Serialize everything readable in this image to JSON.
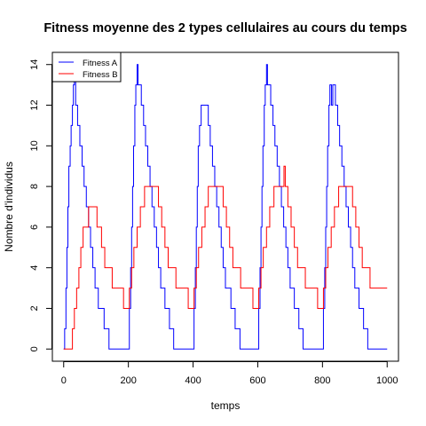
{
  "chart_data": {
    "type": "line",
    "title": "Fitness moyenne des 2 types cellulaires au cours du temps",
    "xlabel": "temps",
    "ylabel": "Nombre d'individus",
    "xlim": [
      -35,
      1035
    ],
    "ylim": [
      -0.6,
      14.6
    ],
    "xticks": [
      0,
      200,
      400,
      600,
      800,
      1000
    ],
    "yticks": [
      0,
      2,
      4,
      6,
      8,
      10,
      12,
      14
    ],
    "xtick_labels": [
      "0",
      "200",
      "400",
      "600",
      "800",
      "1000"
    ],
    "ytick_labels": [
      "0",
      "2",
      "4",
      "6",
      "8",
      "10",
      "12",
      "14"
    ],
    "grid": false,
    "legend_position": "top-left",
    "series": [
      {
        "name": "Fitness A",
        "color": "#0000ff",
        "step": true,
        "points": [
          [
            0,
            0
          ],
          [
            3,
            1
          ],
          [
            7,
            3
          ],
          [
            10,
            5
          ],
          [
            13,
            7
          ],
          [
            16,
            9
          ],
          [
            20,
            10
          ],
          [
            23,
            11
          ],
          [
            27,
            12
          ],
          [
            30,
            13
          ],
          [
            33,
            14
          ],
          [
            37,
            12
          ],
          [
            43,
            11
          ],
          [
            50,
            10
          ],
          [
            57,
            9
          ],
          [
            63,
            8
          ],
          [
            70,
            7
          ],
          [
            77,
            6
          ],
          [
            83,
            5
          ],
          [
            90,
            4
          ],
          [
            97,
            3
          ],
          [
            107,
            2
          ],
          [
            117,
            2
          ],
          [
            125,
            1
          ],
          [
            135,
            1
          ],
          [
            140,
            0
          ],
          [
            200,
            0
          ],
          [
            203,
            2
          ],
          [
            207,
            4
          ],
          [
            210,
            6
          ],
          [
            213,
            8
          ],
          [
            216,
            10
          ],
          [
            220,
            12
          ],
          [
            223,
            13
          ],
          [
            227,
            14
          ],
          [
            230,
            13
          ],
          [
            240,
            12
          ],
          [
            247,
            11
          ],
          [
            253,
            10
          ],
          [
            260,
            9
          ],
          [
            267,
            8
          ],
          [
            273,
            7
          ],
          [
            280,
            6
          ],
          [
            287,
            5
          ],
          [
            293,
            4
          ],
          [
            300,
            3
          ],
          [
            307,
            3
          ],
          [
            313,
            2
          ],
          [
            320,
            2
          ],
          [
            327,
            1
          ],
          [
            335,
            1
          ],
          [
            340,
            0
          ],
          [
            400,
            0
          ],
          [
            403,
            2
          ],
          [
            407,
            4
          ],
          [
            410,
            6
          ],
          [
            413,
            8
          ],
          [
            416,
            10
          ],
          [
            420,
            11
          ],
          [
            425,
            12
          ],
          [
            447,
            11
          ],
          [
            453,
            10
          ],
          [
            460,
            9
          ],
          [
            467,
            8
          ],
          [
            473,
            7
          ],
          [
            480,
            6
          ],
          [
            487,
            5
          ],
          [
            493,
            4
          ],
          [
            500,
            3
          ],
          [
            507,
            3
          ],
          [
            517,
            2
          ],
          [
            525,
            2
          ],
          [
            530,
            1
          ],
          [
            540,
            1
          ],
          [
            545,
            0
          ],
          [
            600,
            0
          ],
          [
            603,
            2
          ],
          [
            607,
            4
          ],
          [
            610,
            6
          ],
          [
            613,
            8
          ],
          [
            616,
            10
          ],
          [
            620,
            12
          ],
          [
            623,
            13
          ],
          [
            627,
            14
          ],
          [
            630,
            13
          ],
          [
            640,
            12
          ],
          [
            647,
            11
          ],
          [
            653,
            10
          ],
          [
            660,
            9
          ],
          [
            667,
            8
          ],
          [
            673,
            7
          ],
          [
            680,
            6
          ],
          [
            687,
            5
          ],
          [
            693,
            4
          ],
          [
            700,
            3
          ],
          [
            707,
            3
          ],
          [
            713,
            2
          ],
          [
            720,
            2
          ],
          [
            727,
            1
          ],
          [
            735,
            1
          ],
          [
            740,
            0
          ],
          [
            800,
            0
          ],
          [
            803,
            2
          ],
          [
            807,
            4
          ],
          [
            810,
            6
          ],
          [
            813,
            8
          ],
          [
            816,
            10
          ],
          [
            820,
            12
          ],
          [
            823,
            13
          ],
          [
            828,
            12
          ],
          [
            832,
            13
          ],
          [
            840,
            12
          ],
          [
            847,
            11
          ],
          [
            853,
            10
          ],
          [
            860,
            9
          ],
          [
            867,
            8
          ],
          [
            873,
            7
          ],
          [
            880,
            6
          ],
          [
            887,
            5
          ],
          [
            893,
            4
          ],
          [
            900,
            3
          ],
          [
            907,
            3
          ],
          [
            913,
            2
          ],
          [
            920,
            2
          ],
          [
            927,
            1
          ],
          [
            935,
            1
          ],
          [
            940,
            0
          ],
          [
            1000,
            0
          ]
        ]
      },
      {
        "name": "Fitness B",
        "color": "#ff0000",
        "step": true,
        "points": [
          [
            0,
            0
          ],
          [
            10,
            0
          ],
          [
            27,
            1
          ],
          [
            33,
            2
          ],
          [
            40,
            3
          ],
          [
            47,
            4
          ],
          [
            53,
            5
          ],
          [
            60,
            6
          ],
          [
            67,
            6
          ],
          [
            77,
            7
          ],
          [
            93,
            7
          ],
          [
            103,
            6
          ],
          [
            117,
            5
          ],
          [
            127,
            4
          ],
          [
            140,
            4
          ],
          [
            150,
            3
          ],
          [
            167,
            3
          ],
          [
            185,
            2
          ],
          [
            200,
            2
          ],
          [
            203,
            3
          ],
          [
            210,
            4
          ],
          [
            217,
            5
          ],
          [
            227,
            6
          ],
          [
            237,
            7
          ],
          [
            250,
            8
          ],
          [
            280,
            8
          ],
          [
            293,
            7
          ],
          [
            303,
            6
          ],
          [
            313,
            5
          ],
          [
            323,
            4
          ],
          [
            337,
            4
          ],
          [
            347,
            3
          ],
          [
            367,
            3
          ],
          [
            385,
            2
          ],
          [
            400,
            2
          ],
          [
            403,
            3
          ],
          [
            410,
            4
          ],
          [
            417,
            5
          ],
          [
            427,
            6
          ],
          [
            437,
            7
          ],
          [
            447,
            8
          ],
          [
            480,
            8
          ],
          [
            493,
            7
          ],
          [
            503,
            6
          ],
          [
            513,
            5
          ],
          [
            523,
            4
          ],
          [
            537,
            4
          ],
          [
            547,
            3
          ],
          [
            567,
            3
          ],
          [
            585,
            2
          ],
          [
            600,
            2
          ],
          [
            603,
            3
          ],
          [
            610,
            4
          ],
          [
            617,
            5
          ],
          [
            627,
            6
          ],
          [
            637,
            7
          ],
          [
            650,
            8
          ],
          [
            677,
            8
          ],
          [
            681,
            9
          ],
          [
            685,
            8
          ],
          [
            693,
            7
          ],
          [
            703,
            6
          ],
          [
            713,
            5
          ],
          [
            723,
            4
          ],
          [
            737,
            4
          ],
          [
            747,
            3
          ],
          [
            767,
            3
          ],
          [
            785,
            2
          ],
          [
            800,
            2
          ],
          [
            803,
            3
          ],
          [
            810,
            4
          ],
          [
            817,
            5
          ],
          [
            827,
            6
          ],
          [
            837,
            7
          ],
          [
            850,
            8
          ],
          [
            880,
            8
          ],
          [
            893,
            7
          ],
          [
            903,
            6
          ],
          [
            913,
            5
          ],
          [
            923,
            4
          ],
          [
            937,
            4
          ],
          [
            947,
            3
          ],
          [
            967,
            3
          ],
          [
            985,
            3
          ],
          [
            1000,
            3
          ]
        ]
      }
    ]
  }
}
